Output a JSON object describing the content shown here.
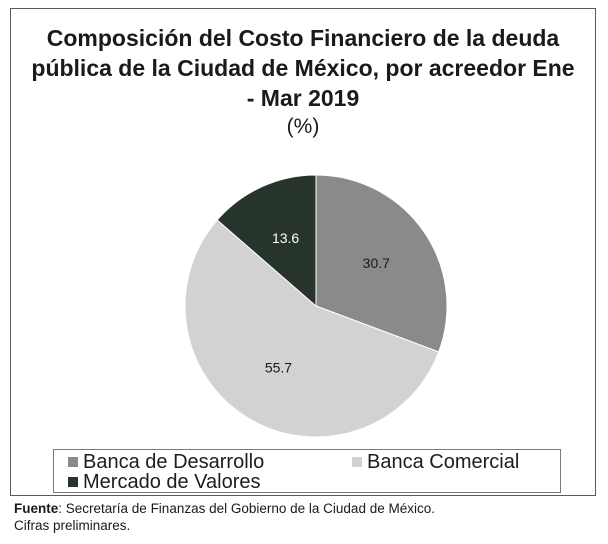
{
  "chart_data": {
    "type": "pie",
    "title": "Composición del Costo Financiero de la deuda pública  de la Ciudad de México, por acreedor Ene - Mar 2019",
    "subtitle": "(%)",
    "categories": [
      "Banca de Desarrollo",
      "Banca Comercial",
      "Mercado de Valores"
    ],
    "values": [
      30.7,
      55.7,
      13.6
    ],
    "labels": [
      "30.7",
      "55.7",
      "13.6"
    ],
    "colors": [
      "#8a8a8a",
      "#d2d2d2",
      "#26342c"
    ],
    "label_colors": [
      "#1a1a1a",
      "#1a1a1a",
      "#ffffff"
    ],
    "legend_position": "bottom"
  },
  "legend": {
    "items": [
      {
        "label": "Banca de Desarrollo",
        "color": "#8a8a8a"
      },
      {
        "label": "Banca Comercial",
        "color": "#d2d2d2"
      },
      {
        "label": "Mercado de Valores",
        "color": "#26342c"
      }
    ]
  },
  "footer": {
    "source_label": "Fuente",
    "source_text": ": Secretaría de Finanzas del Gobierno de la Ciudad de México.",
    "note": "Cifras preliminares."
  }
}
